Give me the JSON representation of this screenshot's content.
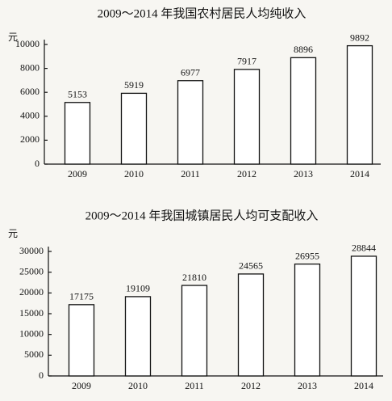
{
  "chart_data": [
    {
      "type": "bar",
      "title": "2009～2014 年我国农村居民人均纯收入",
      "y_label": "元",
      "categories": [
        "2009",
        "2010",
        "2011",
        "2012",
        "2013",
        "2014"
      ],
      "values": [
        5153,
        5919,
        6977,
        7917,
        8896,
        9892
      ],
      "color": "#ffffff",
      "ylim": [
        0,
        10000
      ],
      "yticks": [
        0,
        2000,
        4000,
        6000,
        8000,
        10000
      ],
      "grid": false
    },
    {
      "type": "bar",
      "title": "2009～2014 年我国城镇居民人均可支配收入",
      "y_label": "元",
      "categories": [
        "2009",
        "2010",
        "2011",
        "2012",
        "2013",
        "2014"
      ],
      "values": [
        17175,
        19109,
        21810,
        24565,
        26955,
        28844
      ],
      "color": "#ffffff",
      "ylim": [
        0,
        30000
      ],
      "yticks": [
        0,
        5000,
        10000,
        15000,
        20000,
        25000,
        30000
      ],
      "grid": false
    }
  ]
}
